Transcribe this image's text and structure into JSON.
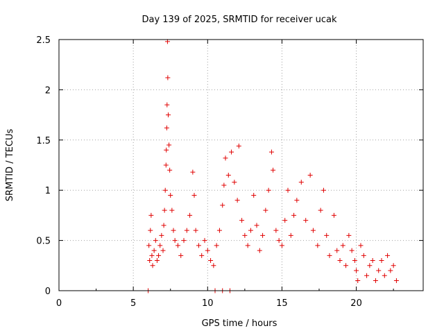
{
  "chart_data": {
    "type": "scatter",
    "title": "Day 139 of 2025, SRMTID for receiver ucak",
    "xlabel": "GPS time / hours",
    "ylabel": "SRMTID / TECUs",
    "xlim": [
      0,
      24.5
    ],
    "ylim": [
      0,
      2.5
    ],
    "xticks": [
      0,
      5,
      10,
      15,
      20
    ],
    "xtick_labels": [
      "0",
      "5",
      "10",
      "15",
      "20"
    ],
    "yticks": [
      0,
      0.5,
      1,
      1.5,
      2,
      2.5
    ],
    "ytick_labels": [
      "0",
      "0.5",
      "1",
      "1.5",
      "2",
      "2.5"
    ],
    "grid": true,
    "marker": "+",
    "series": [
      {
        "name": "SRMTID",
        "color": "#e00000",
        "points": [
          [
            6.0,
            0.0
          ],
          [
            10.5,
            0.0
          ],
          [
            11.0,
            0.0
          ],
          [
            11.5,
            0.0
          ],
          [
            6.05,
            0.45
          ],
          [
            6.1,
            0.3
          ],
          [
            6.15,
            0.6
          ],
          [
            6.2,
            0.75
          ],
          [
            6.25,
            0.35
          ],
          [
            6.3,
            0.25
          ],
          [
            6.4,
            0.4
          ],
          [
            6.5,
            0.5
          ],
          [
            6.6,
            0.3
          ],
          [
            6.7,
            0.35
          ],
          [
            6.8,
            0.45
          ],
          [
            6.9,
            0.55
          ],
          [
            7.0,
            0.4
          ],
          [
            7.05,
            0.65
          ],
          [
            7.1,
            0.8
          ],
          [
            7.15,
            1.0
          ],
          [
            7.2,
            1.25
          ],
          [
            7.22,
            1.4
          ],
          [
            7.25,
            1.62
          ],
          [
            7.27,
            1.85
          ],
          [
            7.3,
            2.48
          ],
          [
            7.32,
            2.12
          ],
          [
            7.35,
            1.75
          ],
          [
            7.4,
            1.45
          ],
          [
            7.45,
            1.2
          ],
          [
            7.5,
            0.95
          ],
          [
            7.6,
            0.8
          ],
          [
            7.7,
            0.6
          ],
          [
            7.8,
            0.5
          ],
          [
            8.0,
            0.45
          ],
          [
            8.2,
            0.35
          ],
          [
            8.4,
            0.5
          ],
          [
            8.6,
            0.6
          ],
          [
            8.8,
            0.75
          ],
          [
            9.0,
            1.18
          ],
          [
            9.1,
            0.95
          ],
          [
            9.2,
            0.6
          ],
          [
            9.4,
            0.45
          ],
          [
            9.6,
            0.35
          ],
          [
            9.8,
            0.5
          ],
          [
            10.0,
            0.4
          ],
          [
            10.2,
            0.3
          ],
          [
            10.4,
            0.25
          ],
          [
            10.6,
            0.45
          ],
          [
            10.8,
            0.6
          ],
          [
            11.0,
            0.85
          ],
          [
            11.1,
            1.05
          ],
          [
            11.2,
            1.32
          ],
          [
            11.4,
            1.15
          ],
          [
            11.6,
            1.38
          ],
          [
            11.8,
            1.08
          ],
          [
            12.0,
            0.9
          ],
          [
            12.1,
            1.44
          ],
          [
            12.3,
            0.7
          ],
          [
            12.5,
            0.55
          ],
          [
            12.7,
            0.45
          ],
          [
            12.9,
            0.6
          ],
          [
            13.1,
            0.95
          ],
          [
            13.3,
            0.65
          ],
          [
            13.5,
            0.4
          ],
          [
            13.7,
            0.55
          ],
          [
            13.9,
            0.8
          ],
          [
            14.1,
            1.0
          ],
          [
            14.3,
            1.38
          ],
          [
            14.4,
            1.2
          ],
          [
            14.6,
            0.6
          ],
          [
            14.8,
            0.5
          ],
          [
            15.0,
            0.45
          ],
          [
            15.2,
            0.7
          ],
          [
            15.4,
            1.0
          ],
          [
            15.6,
            0.55
          ],
          [
            15.8,
            0.75
          ],
          [
            16.0,
            0.9
          ],
          [
            16.3,
            1.08
          ],
          [
            16.6,
            0.7
          ],
          [
            16.9,
            1.15
          ],
          [
            17.1,
            0.6
          ],
          [
            17.4,
            0.45
          ],
          [
            17.6,
            0.8
          ],
          [
            17.8,
            1.0
          ],
          [
            18.0,
            0.55
          ],
          [
            18.2,
            0.35
          ],
          [
            18.5,
            0.75
          ],
          [
            18.7,
            0.4
          ],
          [
            18.9,
            0.3
          ],
          [
            19.1,
            0.45
          ],
          [
            19.3,
            0.25
          ],
          [
            19.5,
            0.55
          ],
          [
            19.7,
            0.4
          ],
          [
            19.9,
            0.3
          ],
          [
            20.0,
            0.2
          ],
          [
            20.1,
            0.1
          ],
          [
            20.3,
            0.45
          ],
          [
            20.5,
            0.35
          ],
          [
            20.7,
            0.15
          ],
          [
            20.9,
            0.25
          ],
          [
            21.1,
            0.3
          ],
          [
            21.3,
            0.1
          ],
          [
            21.5,
            0.2
          ],
          [
            21.7,
            0.3
          ],
          [
            21.9,
            0.15
          ],
          [
            22.1,
            0.35
          ],
          [
            22.3,
            0.2
          ],
          [
            22.5,
            0.25
          ],
          [
            22.7,
            0.1
          ]
        ]
      }
    ]
  }
}
